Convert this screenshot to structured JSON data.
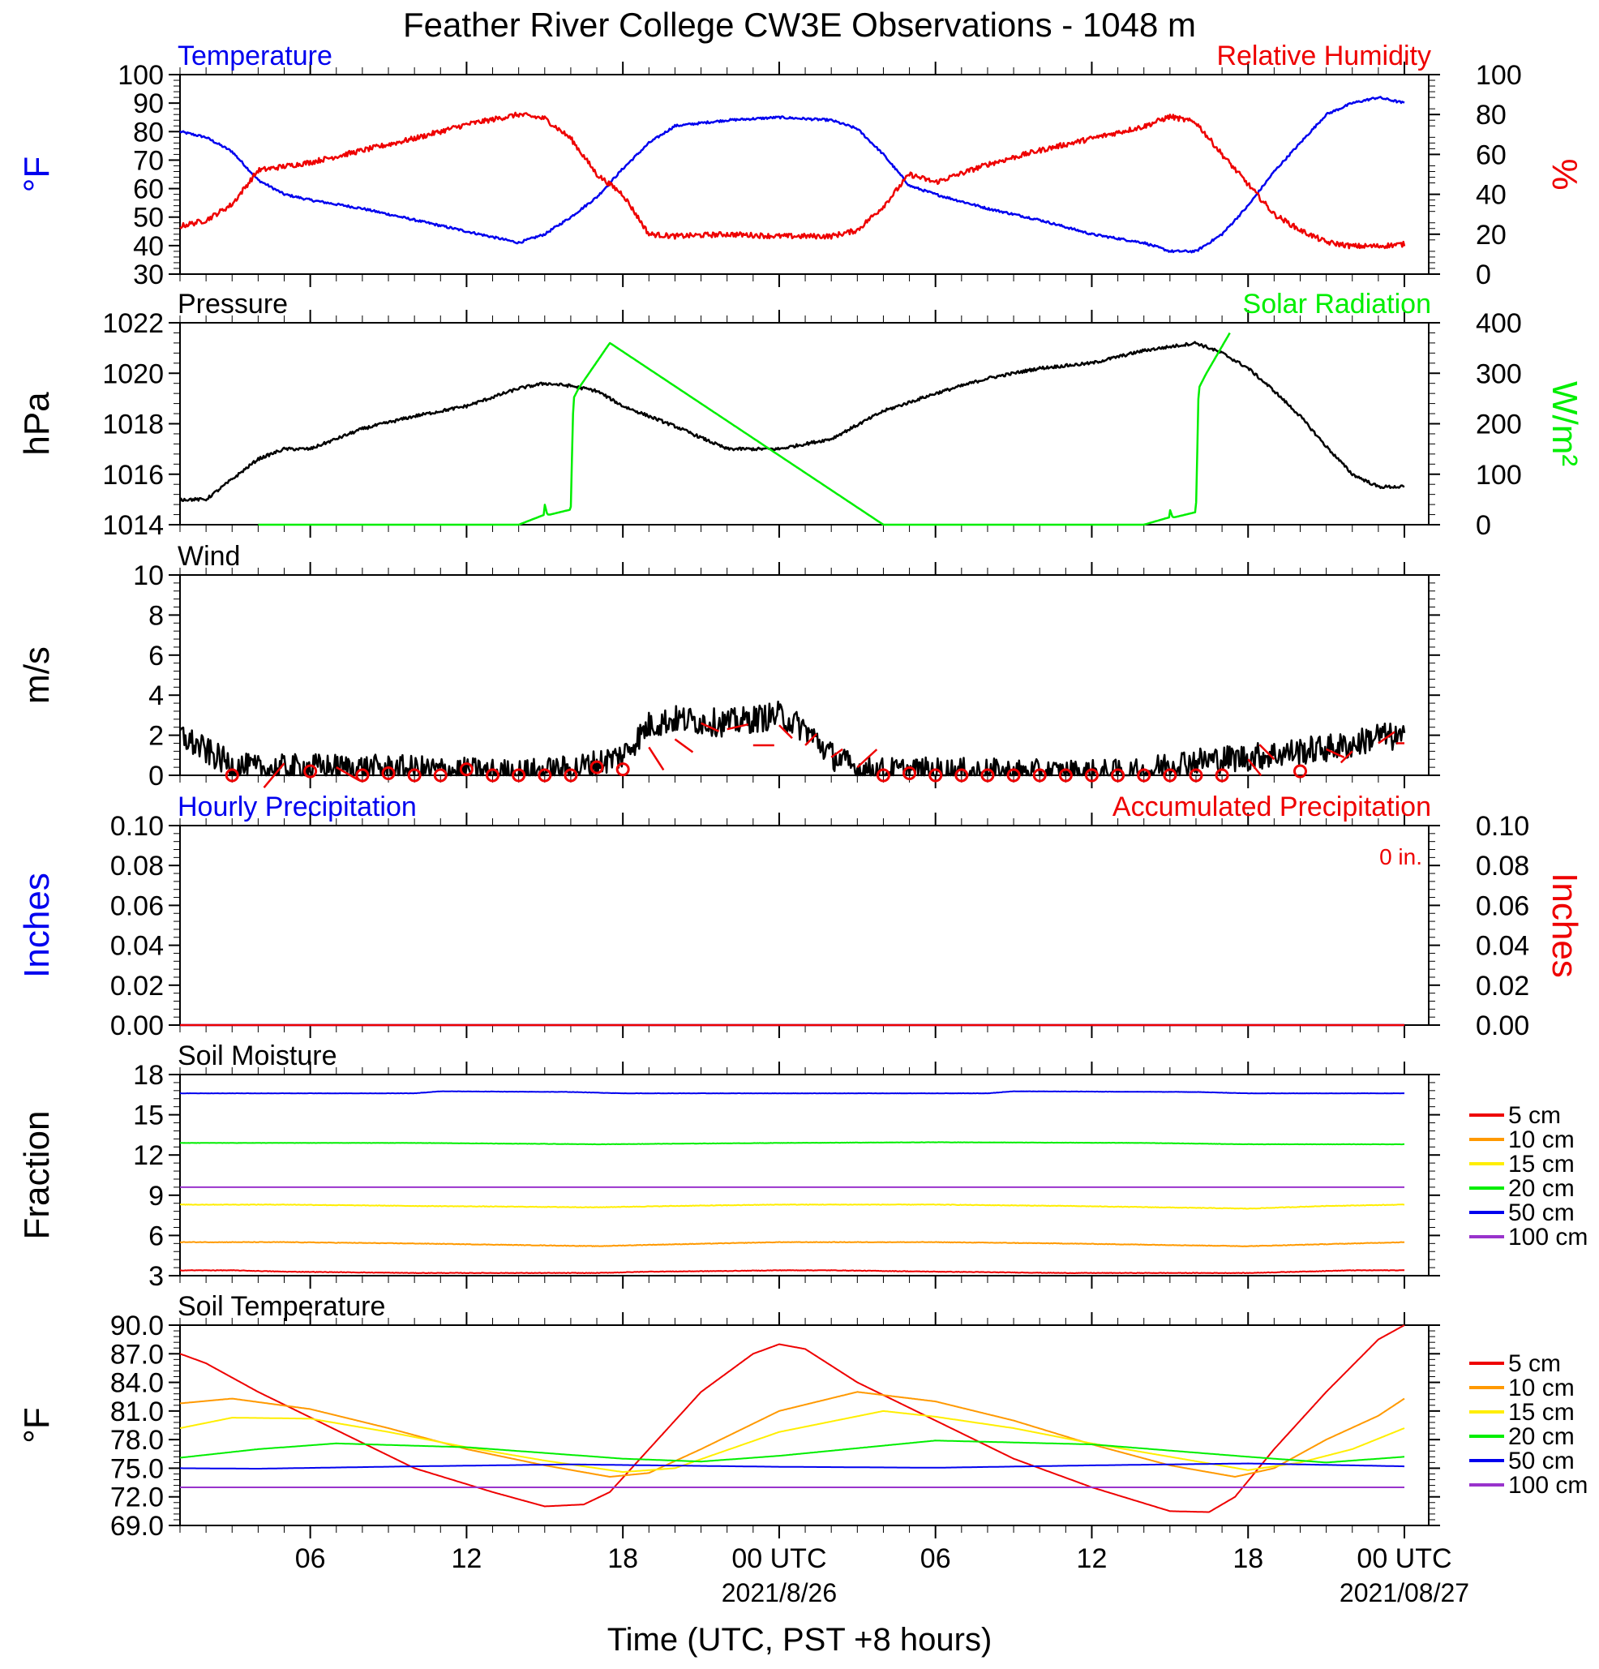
{
  "title": "Feather River College CW3E Observations - 1048 m",
  "xlabel": "Time (UTC, PST +8 hours)",
  "colors": {
    "blue": "#0000ee",
    "red": "#ee0000",
    "green": "#00ee00",
    "black": "#000000",
    "orange": "#ff9900",
    "yellow": "#ffee00",
    "purple": "#9933cc"
  },
  "x_axis": {
    "hours": [
      6,
      12,
      18,
      24,
      30,
      36,
      42,
      48
    ],
    "labels": [
      "06",
      "12",
      "18",
      "00 UTC",
      "06",
      "12",
      "18",
      "00 UTC"
    ],
    "dates": [
      "",
      "",
      "",
      "2021/8/26",
      "",
      "",
      "",
      "2021/08/27"
    ],
    "range": [
      1,
      48
    ]
  },
  "chart_data": [
    {
      "type": "line",
      "name": "temp_rh",
      "title": "",
      "left_title": "Temperature",
      "right_title": "Relative Humidity",
      "ylabel_left": "°F",
      "ylabel_right": "%",
      "ylim_left": [
        30,
        100
      ],
      "yticks_left": [
        30,
        40,
        50,
        60,
        70,
        80,
        90,
        100
      ],
      "ylim_right": [
        0,
        100
      ],
      "yticks_right": [
        0,
        20,
        40,
        60,
        80,
        100
      ],
      "series": [
        {
          "name": "Temperature",
          "color": "blue",
          "axis": "left",
          "noise": 0.4,
          "x": [
            1,
            2,
            3,
            4,
            5,
            6,
            8,
            10,
            12,
            14,
            15,
            16,
            17,
            18,
            19,
            20,
            22,
            24,
            26,
            27,
            28,
            29,
            30,
            32,
            34,
            36,
            38,
            39,
            40,
            41,
            42,
            43,
            44,
            45,
            46,
            47,
            48
          ],
          "y": [
            80,
            78,
            73,
            63,
            58,
            56,
            53,
            49,
            45,
            41,
            44,
            50,
            57,
            67,
            76,
            82,
            84,
            85,
            84,
            81,
            72,
            61,
            58,
            53,
            49,
            44,
            41,
            38,
            38,
            44,
            54,
            66,
            76,
            86,
            90,
            92,
            90
          ]
        },
        {
          "name": "Relative Humidity",
          "color": "red",
          "axis": "right",
          "noise": 1.3,
          "x": [
            1,
            2,
            3,
            4,
            5,
            6,
            8,
            10,
            12,
            14,
            15,
            16,
            17,
            18,
            19,
            20,
            22,
            24,
            26,
            27,
            28,
            29,
            30,
            32,
            34,
            36,
            38,
            39,
            40,
            41,
            42,
            43,
            44,
            45,
            46,
            47,
            48
          ],
          "y": [
            24,
            27,
            35,
            52,
            54,
            56,
            62,
            68,
            75,
            80,
            78,
            68,
            50,
            40,
            20,
            19,
            20,
            19,
            19,
            22,
            34,
            50,
            46,
            55,
            62,
            68,
            74,
            79,
            76,
            60,
            45,
            30,
            22,
            16,
            14,
            14,
            15
          ]
        }
      ]
    },
    {
      "type": "line",
      "name": "pressure_solar",
      "left_title": "Pressure",
      "right_title": "Solar Radiation",
      "ylabel_left": "hPa",
      "ylabel_right": "W/m²",
      "ylim_left": [
        1014,
        1022
      ],
      "yticks_left": [
        1014,
        1016,
        1018,
        1020,
        1022
      ],
      "ylim_right": [
        0,
        400
      ],
      "yticks_right": [
        0,
        100,
        200,
        300,
        400
      ],
      "series": [
        {
          "name": "Pressure",
          "color": "black",
          "axis": "left",
          "noise": 0.06,
          "x": [
            1,
            2,
            3,
            4,
            5,
            6,
            8,
            10,
            12,
            14,
            15,
            16,
            17,
            18,
            20,
            22,
            24,
            26,
            28,
            30,
            32,
            34,
            36,
            38,
            40,
            41,
            42,
            43,
            44,
            45,
            46,
            47,
            48
          ],
          "y": [
            1015,
            1015,
            1015.8,
            1016.6,
            1017,
            1017,
            1017.8,
            1018.3,
            1018.7,
            1019.4,
            1019.6,
            1019.5,
            1019.3,
            1018.7,
            1017.9,
            1017.0,
            1017.0,
            1017.4,
            1018.5,
            1019.2,
            1019.8,
            1020.2,
            1020.4,
            1020.9,
            1021.2,
            1020.8,
            1020.2,
            1019.3,
            1018.3,
            1017.1,
            1016.0,
            1015.5,
            1015.5
          ]
        },
        {
          "name": "Solar Radiation",
          "color": "green",
          "axis": "right",
          "noise": 0,
          "x": [
            4,
            14,
            15,
            15,
            15.1,
            15.2,
            16,
            16.1,
            16.3,
            17.5,
            28,
            38,
            39,
            39,
            39.1,
            39.2,
            40,
            40.1,
            40.4,
            41.3
          ],
          "y": [
            0,
            0,
            20,
            40,
            20,
            20,
            30,
            250,
            270,
            360,
            0,
            0,
            15,
            30,
            15,
            15,
            25,
            270,
            300,
            380
          ]
        }
      ]
    },
    {
      "type": "line",
      "name": "wind",
      "left_title": "Wind",
      "ylabel_left": "m/s",
      "ylim_left": [
        0,
        10
      ],
      "yticks_left": [
        0,
        2,
        4,
        6,
        8,
        10
      ],
      "series": [
        {
          "name": "Wind speed",
          "color": "black",
          "axis": "left",
          "noise": 0.7,
          "x": [
            1,
            2,
            3,
            4,
            6,
            10,
            14,
            16,
            17,
            18,
            19,
            20,
            22,
            24,
            25,
            26,
            27,
            28,
            30,
            34,
            38,
            39,
            40,
            42,
            44,
            46,
            47,
            48
          ],
          "y": [
            2,
            1.2,
            0.5,
            0.3,
            0.4,
            0.3,
            0.1,
            0.3,
            0.6,
            1,
            2.5,
            2.8,
            2.6,
            3,
            2.3,
            1.0,
            0.3,
            0.2,
            0.2,
            0.1,
            0.1,
            0.6,
            0.7,
            0.9,
            1.2,
            1.5,
            2,
            1.8
          ]
        }
      ],
      "barb_hours": [
        3,
        4,
        5,
        6,
        7,
        8,
        9,
        10,
        11,
        12,
        13,
        14,
        15,
        16,
        17,
        18,
        19,
        20,
        21,
        22,
        23,
        24,
        25,
        26,
        27,
        28,
        29,
        30,
        31,
        32,
        33,
        34,
        35,
        36,
        37,
        38,
        39,
        40,
        41,
        42,
        43,
        44,
        45,
        46,
        47,
        48
      ],
      "calm_hours": [
        3,
        6,
        8,
        9,
        10,
        11,
        12,
        13,
        14,
        15,
        16,
        17,
        18,
        28,
        29,
        30,
        31,
        32,
        33,
        34,
        35,
        36,
        37,
        38,
        39,
        40,
        41,
        44
      ],
      "calm_speeds": [
        0,
        0.2,
        0,
        0.1,
        0,
        0,
        0.3,
        0,
        0,
        0,
        0,
        0.4,
        0.3,
        0,
        0.1,
        0,
        0,
        0,
        0,
        0,
        0,
        0,
        0,
        0,
        0,
        0,
        0,
        0.2
      ]
    },
    {
      "type": "line",
      "name": "precip",
      "left_title": "Hourly Precipitation",
      "right_title": "Accumulated Precipitation",
      "accum_label": "0 in.",
      "ylabel_left": "Inches",
      "ylabel_right": "Inches",
      "ylim_left": [
        0,
        0.1
      ],
      "yticks_left": [
        0.0,
        0.02,
        0.04,
        0.06,
        0.08,
        0.1
      ],
      "ylim_right": [
        0,
        0.1
      ],
      "yticks_right": [
        0.0,
        0.02,
        0.04,
        0.06,
        0.08,
        0.1
      ],
      "series": [
        {
          "name": "Hourly Precipitation",
          "color": "blue",
          "axis": "left",
          "noise": 0,
          "x": [
            1,
            48
          ],
          "y": [
            0,
            0
          ]
        },
        {
          "name": "Accumulated Precipitation",
          "color": "red",
          "axis": "right",
          "noise": 0,
          "x": [
            1,
            48
          ],
          "y": [
            0,
            0
          ]
        }
      ]
    },
    {
      "type": "line",
      "name": "soil_moisture",
      "left_title": "Soil Moisture",
      "ylabel_left": "Fraction",
      "ylim_left": [
        3,
        18
      ],
      "yticks_left": [
        3,
        6,
        9,
        12,
        15,
        18
      ],
      "legend": [
        "5 cm",
        "10 cm",
        "15 cm",
        "20 cm",
        "50 cm",
        "100 cm"
      ],
      "series": [
        {
          "name": "5 cm",
          "color": "red",
          "axis": "left",
          "noise": 0.02,
          "x": [
            1,
            3,
            5,
            10,
            17,
            19,
            22,
            24,
            26,
            28,
            30,
            35,
            42,
            44,
            46,
            48
          ],
          "y": [
            3.4,
            3.4,
            3.3,
            3.2,
            3.2,
            3.3,
            3.35,
            3.4,
            3.4,
            3.35,
            3.3,
            3.2,
            3.2,
            3.3,
            3.4,
            3.4
          ]
        },
        {
          "name": "10 cm",
          "color": "orange",
          "axis": "left",
          "noise": 0.02,
          "x": [
            1,
            5,
            10,
            17,
            19,
            24,
            30,
            35,
            42,
            44,
            48
          ],
          "y": [
            5.5,
            5.5,
            5.4,
            5.2,
            5.3,
            5.5,
            5.5,
            5.4,
            5.2,
            5.3,
            5.5
          ]
        },
        {
          "name": "15 cm",
          "color": "yellow",
          "axis": "left",
          "noise": 0.02,
          "x": [
            1,
            5,
            10,
            17,
            20,
            24,
            30,
            35,
            42,
            45,
            48
          ],
          "y": [
            8.3,
            8.3,
            8.2,
            8.1,
            8.2,
            8.3,
            8.3,
            8.2,
            8.0,
            8.2,
            8.3
          ]
        },
        {
          "name": "20 cm",
          "color": "green",
          "axis": "left",
          "noise": 0.01,
          "x": [
            1,
            10,
            17,
            24,
            30,
            38,
            42,
            48
          ],
          "y": [
            12.9,
            12.9,
            12.8,
            12.9,
            12.95,
            12.9,
            12.8,
            12.8
          ]
        },
        {
          "name": "50 cm",
          "color": "blue",
          "axis": "left",
          "noise": 0.01,
          "x": [
            1,
            10,
            11,
            16,
            18,
            24,
            32,
            33,
            40,
            42,
            48
          ],
          "y": [
            16.6,
            16.6,
            16.75,
            16.7,
            16.6,
            16.6,
            16.6,
            16.75,
            16.7,
            16.6,
            16.6
          ]
        },
        {
          "name": "100 cm",
          "color": "purple",
          "axis": "left",
          "noise": 0,
          "x": [
            1,
            48
          ],
          "y": [
            9.6,
            9.6
          ]
        }
      ]
    },
    {
      "type": "line",
      "name": "soil_temp",
      "left_title": "Soil Temperature",
      "ylabel_left": "°F",
      "ylim_left": [
        69,
        90
      ],
      "yticks_left": [
        69.0,
        72.0,
        75.0,
        78.0,
        81.0,
        84.0,
        87.0,
        90.0
      ],
      "legend": [
        "5 cm",
        "10 cm",
        "15 cm",
        "20 cm",
        "50 cm",
        "100 cm"
      ],
      "series": [
        {
          "name": "5 cm",
          "color": "red",
          "axis": "left",
          "noise": 0,
          "x": [
            1,
            2,
            4,
            7,
            10,
            13,
            15,
            16.5,
            17.5,
            19,
            21,
            23,
            24,
            25,
            27,
            30,
            33,
            36,
            39,
            40.5,
            41.5,
            43,
            45,
            47,
            48
          ],
          "y": [
            87,
            86,
            83,
            79,
            75,
            72.5,
            71,
            71.2,
            72.5,
            77,
            83,
            87,
            88,
            87.5,
            84,
            80,
            76,
            73,
            70.5,
            70.4,
            72,
            77,
            83,
            88.5,
            90
          ]
        },
        {
          "name": "10 cm",
          "color": "orange",
          "axis": "left",
          "noise": 0,
          "x": [
            1,
            3,
            6,
            9,
            12,
            15,
            17.5,
            19,
            21,
            24,
            27,
            30,
            33,
            36,
            39,
            41.5,
            43,
            45,
            47,
            48
          ],
          "y": [
            81.8,
            82.3,
            81.2,
            79.2,
            77,
            75.3,
            74.1,
            74.5,
            77,
            81,
            83,
            82,
            80,
            77.5,
            75.3,
            74.1,
            75,
            78,
            80.5,
            82.3
          ]
        },
        {
          "name": "15 cm",
          "color": "yellow",
          "axis": "left",
          "noise": 0,
          "x": [
            1,
            3,
            6,
            9,
            12,
            15,
            18,
            20,
            24,
            28,
            30,
            33,
            36,
            39,
            42,
            44,
            46,
            48
          ],
          "y": [
            79.2,
            80.3,
            80.2,
            78.8,
            77.2,
            75.8,
            74.6,
            75,
            78.8,
            81,
            80.4,
            79.2,
            77.6,
            76.2,
            74.8,
            75.6,
            77,
            79.2
          ]
        },
        {
          "name": "20 cm",
          "color": "green",
          "axis": "left",
          "noise": 0,
          "x": [
            1,
            4,
            7,
            12,
            18,
            21,
            24,
            30,
            36,
            42,
            45,
            48
          ],
          "y": [
            76.1,
            77,
            77.6,
            77.2,
            76,
            75.7,
            76.3,
            77.9,
            77.5,
            76.2,
            75.6,
            76.2
          ]
        },
        {
          "name": "50 cm",
          "color": "blue",
          "axis": "left",
          "noise": 0,
          "x": [
            1,
            4,
            10,
            16,
            24,
            30,
            36,
            42,
            48
          ],
          "y": [
            75,
            74.95,
            75.2,
            75.4,
            75.15,
            75.05,
            75.3,
            75.5,
            75.2
          ]
        },
        {
          "name": "100 cm",
          "color": "purple",
          "axis": "left",
          "noise": 0,
          "x": [
            1,
            48
          ],
          "y": [
            73,
            73
          ]
        }
      ]
    }
  ]
}
